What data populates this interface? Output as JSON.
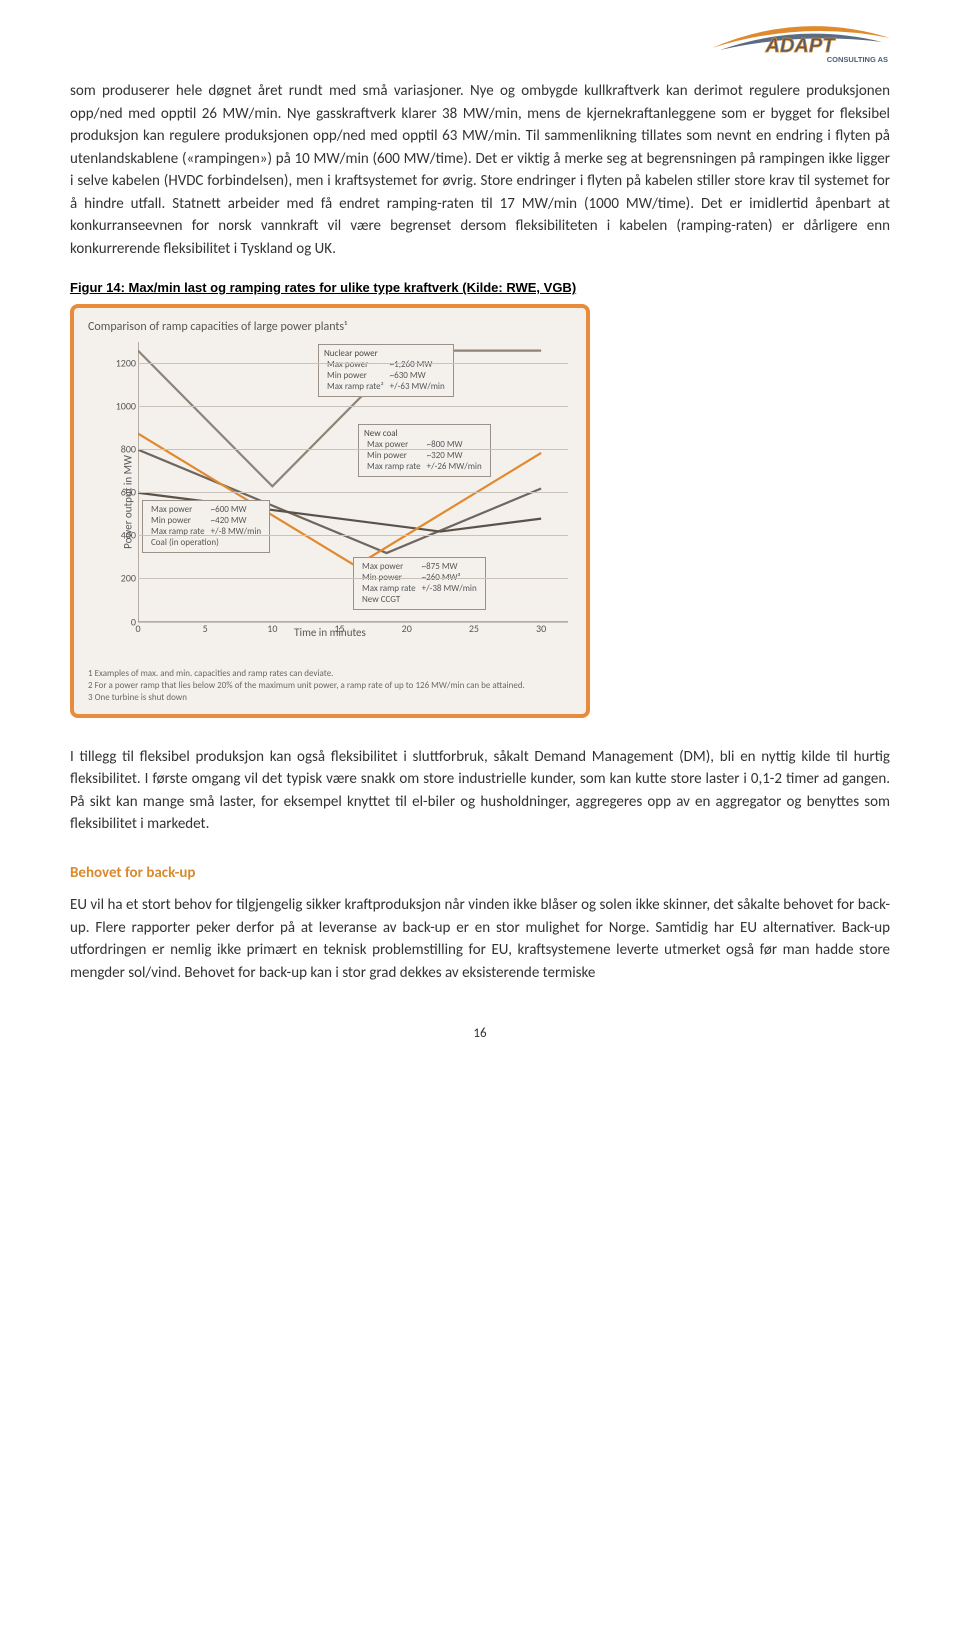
{
  "logo": {
    "name": "ADAPT",
    "sub": "CONSULTING AS",
    "swoosh_outer": "#e08a2e",
    "swoosh_inner": "#5a6b82",
    "text_fill": "#4a5e78",
    "text_outline": "#d88a2e"
  },
  "paragraphs": {
    "p1": "som produserer hele døgnet året rundt med små variasjoner. Nye og ombygde kullkraftverk kan derimot regulere produksjonen opp/ned med opptil 26 MW/min. Nye gasskraftverk klarer 38 MW/min, mens de kjernekraftanleggene som er bygget for fleksibel produksjon kan regulere produksjonen opp/ned med opptil 63 MW/min. Til sammenlikning tillates som nevnt en endring i flyten på utenlandskablene («rampingen») på 10 MW/min (600 MW/time). Det er viktig å merke seg at begrensningen på rampingen ikke ligger i selve kabelen (HVDC forbindelsen), men i kraftsystemet for øvrig. Store endringer i flyten på kabelen stiller store krav til systemet for å hindre utfall. Statnett arbeider med få endret ramping-raten til 17 MW/min (1000 MW/time). Det er imidlertid åpenbart at konkurranseevnen for norsk vannkraft vil være begrenset dersom fleksibiliteten i kabelen (ramping-raten) er dårligere enn konkurrerende fleksibilitet i Tyskland og UK.",
    "p2": "I tillegg til fleksibel produksjon kan også fleksibilitet i sluttforbruk, såkalt Demand Management (DM), bli en nyttig kilde til hurtig fleksibilitet. I første omgang vil det typisk være snakk om store industrielle kunder, som kan kutte store laster i 0,1-2 timer ad gangen. På sikt kan mange små laster, for eksempel knyttet til el-biler og husholdninger, aggregeres opp av en aggregator og benyttes som fleksibilitet i markedet.",
    "p3": "EU vil ha et stort behov for tilgjengelig sikker kraftproduksjon når vinden ikke blåser og solen ikke skinner, det såkalte behovet for back-up. Flere rapporter peker derfor på at leveranse av back-up er en stor mulighet for Norge. Samtidig har EU alternativer. Back-up utfordringen er nemlig ikke primært en teknisk problemstilling for EU, kraftsystemene leverte utmerket også før man hadde store mengder sol/vind. Behovet for back-up kan i stor grad dekkes av eksisterende termiske"
  },
  "figure": {
    "caption": "Figur 14: Max/min last og ramping rates for ulike type kraftverk (Kilde: RWE, VGB)",
    "title": "Comparison of ramp capacities of large power plants¹",
    "ylabel": "Power output in MW",
    "xlabel": "Time in minutes",
    "ylim": [
      0,
      1300
    ],
    "xlim": [
      0,
      32
    ],
    "yticks": [
      0,
      200,
      400,
      600,
      800,
      1000,
      1200
    ],
    "xticks": [
      0,
      5,
      10,
      15,
      20,
      25,
      30
    ],
    "border_color": "#e88b3a",
    "bg": "#f4f0ec",
    "grid_color": "#c9c2bb",
    "text_color": "#575757",
    "series": {
      "nuclear": {
        "color": "#8e8376",
        "label": "Nuclear power",
        "max": "~1,260 MW",
        "min": "~630 MW",
        "ramp_label": "Max ramp rate²",
        "ramp": "+/-63 MW/min",
        "points": [
          [
            0,
            1260
          ],
          [
            10,
            630
          ],
          [
            20,
            1260
          ],
          [
            30,
            1260
          ]
        ]
      },
      "newcoal": {
        "color": "#6f675d",
        "label": "New coal",
        "max": "~800 MW",
        "min": "~320 MW",
        "ramp_label": "Max ramp rate",
        "ramp": "+/-26 MW/min",
        "points": [
          [
            0,
            800
          ],
          [
            18.5,
            320
          ],
          [
            30,
            620
          ]
        ]
      },
      "coalop": {
        "color": "#5a5249",
        "label": "Coal (in operation)",
        "max": "~600 MW",
        "min": "~420 MW",
        "ramp_label": "Max ramp rate",
        "ramp": "+/-8 MW/min",
        "points": [
          [
            0,
            600
          ],
          [
            22.5,
            420
          ],
          [
            30,
            480
          ]
        ]
      },
      "ccgt": {
        "color": "#e08a2e",
        "label": "New CCGT",
        "max": "~875 MW",
        "min": "~260 MW³",
        "ramp_label": "Max ramp rate",
        "ramp": "+/-38 MW/min",
        "points": [
          [
            0,
            875
          ],
          [
            16.2,
            260
          ],
          [
            30,
            785
          ]
        ]
      }
    },
    "notes": [
      "1 Examples of max. and min. capacities and ramp rates can deviate.",
      "2 For a power ramp that lies below 20% of the maximum unit power, a ramp rate of up to 126 MW/min can be attained.",
      "3 One turbine is shut down"
    ]
  },
  "section_heading": "Behovet for back-up",
  "page_number": "16"
}
